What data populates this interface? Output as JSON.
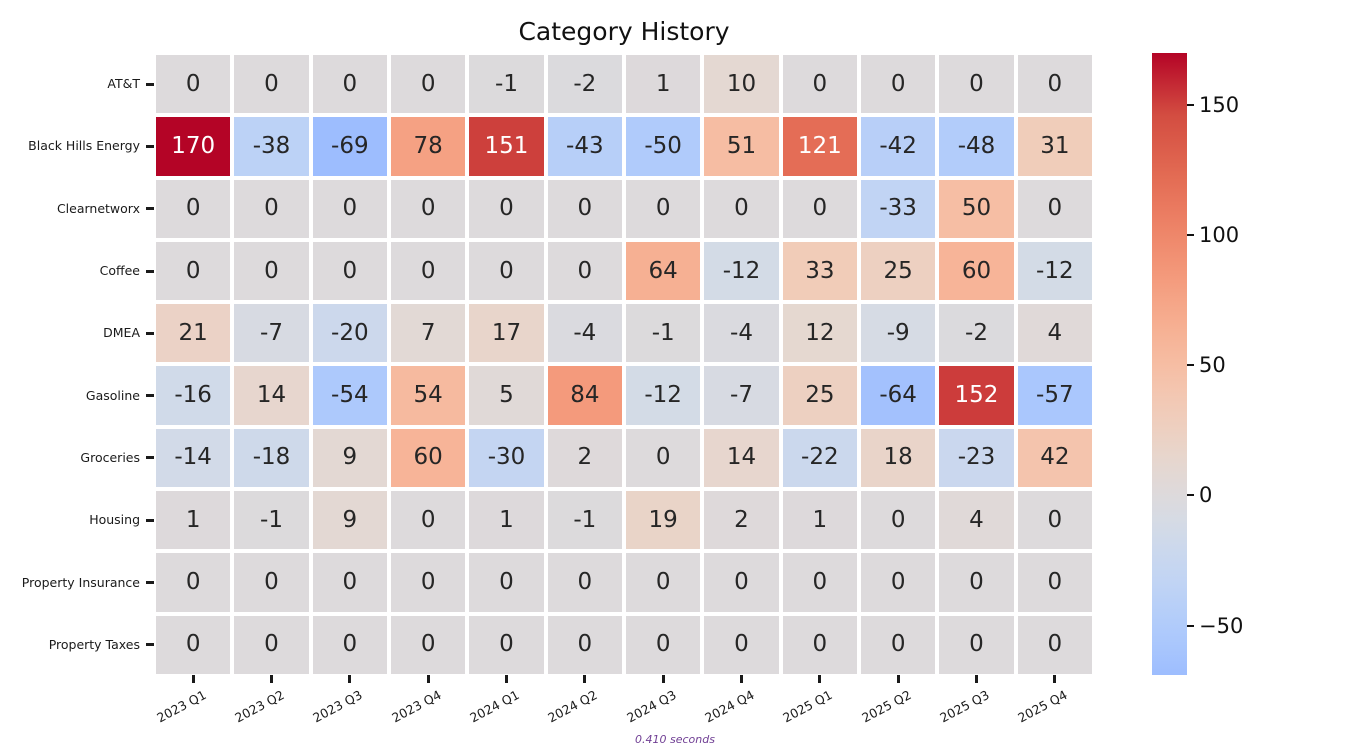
{
  "title": "Category History",
  "footer": {
    "elapsed": "0.410 seconds"
  },
  "colors": {
    "background": "#ffffff",
    "title_text": "#111111",
    "axis_text": "#1a1a1a",
    "annot_dark": "#262626",
    "annot_light": "#ffffff",
    "footer_text": "#703f94"
  },
  "chart_data": {
    "type": "heatmap",
    "title": "Category History",
    "rows": [
      "AT&T",
      "Black Hills Energy",
      "Clearnetworx",
      "Coffee",
      "DMEA",
      "Gasoline",
      "Groceries",
      "Housing",
      "Property Insurance",
      "Property Taxes"
    ],
    "columns": [
      "2023 Q1",
      "2023 Q2",
      "2023 Q3",
      "2023 Q4",
      "2024 Q1",
      "2024 Q2",
      "2024 Q3",
      "2024 Q4",
      "2025 Q1",
      "2025 Q2",
      "2025 Q3",
      "2025 Q4"
    ],
    "values": [
      [
        0,
        0,
        0,
        0,
        -1,
        -2,
        1,
        10,
        0,
        0,
        0,
        0
      ],
      [
        170,
        -38,
        -69,
        78,
        151,
        -43,
        -50,
        51,
        121,
        -42,
        -48,
        31
      ],
      [
        0,
        0,
        0,
        0,
        0,
        0,
        0,
        0,
        0,
        -33,
        50,
        0
      ],
      [
        0,
        0,
        0,
        0,
        0,
        0,
        64,
        -12,
        33,
        25,
        60,
        -12
      ],
      [
        21,
        -7,
        -20,
        7,
        17,
        -4,
        -1,
        -4,
        12,
        -9,
        -2,
        4
      ],
      [
        -16,
        14,
        -54,
        54,
        5,
        84,
        -12,
        -7,
        25,
        -64,
        152,
        -57
      ],
      [
        -14,
        -18,
        9,
        60,
        -30,
        2,
        0,
        14,
        -22,
        18,
        -23,
        42
      ],
      [
        1,
        -1,
        9,
        0,
        1,
        -1,
        19,
        2,
        1,
        0,
        4,
        0
      ],
      [
        0,
        0,
        0,
        0,
        0,
        0,
        0,
        0,
        0,
        0,
        0,
        0
      ],
      [
        0,
        0,
        0,
        0,
        0,
        0,
        0,
        0,
        0,
        0,
        0,
        0
      ]
    ],
    "norm": {
      "center": 0,
      "vmin": -170,
      "vmax": 170
    },
    "display_range": {
      "min": -69,
      "max": 170
    },
    "colormap": {
      "name": "coolwarm",
      "anchors": [
        "#3b4cc0",
        "#4f69d9",
        "#6485ec",
        "#7b9ff9",
        "#93b5fe",
        "#aac7fd",
        "#c0d4f5",
        "#d4dbe6",
        "#e5d8d1",
        "#f2cbb7",
        "#f7b89c",
        "#f5a081",
        "#ee8468",
        "#e26952",
        "#d24b40",
        "#b40426"
      ]
    },
    "colorbar": {
      "position": "right",
      "tick_values": [
        150,
        100,
        50,
        0,
        -50
      ],
      "tick_labels": [
        "150",
        "100",
        "50",
        "0",
        "−50"
      ]
    },
    "grid": "off",
    "legend": "none",
    "annotations": "integer values in every cell"
  }
}
